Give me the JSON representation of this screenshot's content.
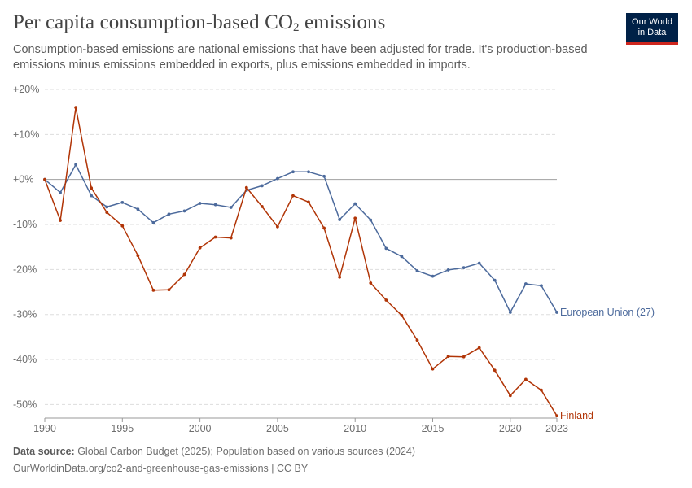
{
  "header": {
    "title": "Per capita consumption-based CO",
    "title_sub": "2",
    "title_end": " emissions",
    "subtitle": "Consumption-based emissions are national emissions that have been adjusted for trade. It's production-based emissions minus emissions embedded in exports, plus emissions embedded in imports.",
    "logo_line1": "Our World",
    "logo_line2": "in Data"
  },
  "footer": {
    "source_label": "Data source:",
    "source_text": " Global Carbon Budget (2025); Population based on various sources (2024)",
    "url_text": "OurWorldinData.org/co2-and-greenhouse-gas-emissions | CC BY"
  },
  "chart_data": {
    "type": "line",
    "ylim": [
      -53,
      20
    ],
    "xlim": [
      1990,
      2023
    ],
    "y_ticks": [
      20,
      10,
      0,
      -10,
      -20,
      -30,
      -40,
      -50
    ],
    "y_tick_labels": [
      "+20%",
      "+10%",
      "+0%",
      "-10%",
      "-20%",
      "-30%",
      "-40%",
      "-50%"
    ],
    "x_ticks": [
      1990,
      1995,
      2000,
      2005,
      2010,
      2015,
      2020,
      2023
    ],
    "x_tick_labels": [
      "1990",
      "1995",
      "2000",
      "2005",
      "2010",
      "2015",
      "2020",
      "2023"
    ],
    "grid": true,
    "x": [
      1990,
      1991,
      1992,
      1993,
      1994,
      1995,
      1996,
      1997,
      1998,
      1999,
      2000,
      2001,
      2002,
      2003,
      2004,
      2005,
      2006,
      2007,
      2008,
      2009,
      2010,
      2011,
      2012,
      2013,
      2014,
      2015,
      2016,
      2017,
      2018,
      2019,
      2020,
      2021,
      2022,
      2023
    ],
    "series": [
      {
        "name": "European Union (27)",
        "color": "#4c6a9c",
        "values": [
          0,
          -2.9,
          3.3,
          -3.6,
          -6.1,
          -5.1,
          -6.6,
          -9.6,
          -7.7,
          -7.0,
          -5.3,
          -5.6,
          -6.2,
          -2.4,
          -1.4,
          0.2,
          1.7,
          1.7,
          0.7,
          -8.9,
          -5.4,
          -9.0,
          -15.3,
          -17.1,
          -20.3,
          -21.5,
          -20.1,
          -19.6,
          -18.6,
          -22.4,
          -29.5,
          -23.2,
          -23.6,
          -29.5
        ]
      },
      {
        "name": "Finland",
        "color": "#b13507",
        "values": [
          0,
          -9.1,
          16.0,
          -1.9,
          -7.3,
          -10.3,
          -16.9,
          -24.6,
          -24.5,
          -21.1,
          -15.2,
          -12.8,
          -13.0,
          -1.8,
          -6.0,
          -10.5,
          -3.6,
          -5.0,
          -10.8,
          -21.7,
          -8.6,
          -23.0,
          -26.8,
          -30.2,
          -35.7,
          -42.1,
          -39.3,
          -39.4,
          -37.4,
          -42.4,
          -48.0,
          -44.4,
          -46.8,
          -52.5
        ]
      }
    ]
  }
}
